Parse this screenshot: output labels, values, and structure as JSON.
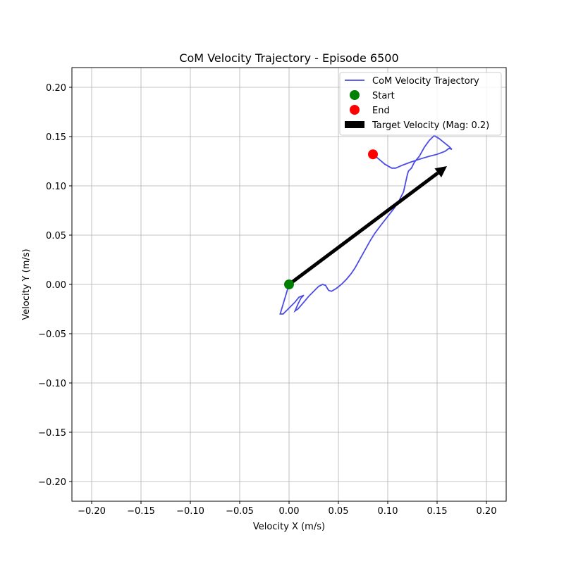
{
  "chart_data": {
    "type": "line",
    "title": "CoM Velocity Trajectory - Episode 6500",
    "xlabel": "Velocity X (m/s)",
    "ylabel": "Velocity Y (m/s)",
    "xlim": [
      -0.22,
      0.22
    ],
    "ylim": [
      -0.22,
      0.22
    ],
    "grid": true,
    "legend_position": "top-right",
    "x_ticks": [
      -0.2,
      -0.15,
      -0.1,
      -0.05,
      0.0,
      0.05,
      0.1,
      0.15,
      0.2
    ],
    "y_ticks": [
      -0.2,
      -0.15,
      -0.1,
      -0.05,
      0.0,
      0.05,
      0.1,
      0.15,
      0.2
    ],
    "x_tick_labels": [
      "−0.20",
      "−0.15",
      "−0.10",
      "−0.05",
      "0.00",
      "0.05",
      "0.10",
      "0.15",
      "0.20"
    ],
    "y_tick_labels": [
      "−0.20",
      "−0.15",
      "−0.10",
      "−0.05",
      "0.00",
      "0.05",
      "0.10",
      "0.15",
      "0.20"
    ],
    "series": [
      {
        "name": "CoM Velocity Trajectory",
        "color": "#4b4be6",
        "points": [
          [
            0.0,
            0.0
          ],
          [
            -0.003,
            -0.01
          ],
          [
            -0.006,
            -0.02
          ],
          [
            -0.009,
            -0.03
          ],
          [
            -0.006,
            -0.03
          ],
          [
            0.0,
            -0.024
          ],
          [
            0.006,
            -0.018
          ],
          [
            0.01,
            -0.013
          ],
          [
            0.015,
            -0.011
          ],
          [
            0.012,
            -0.014
          ],
          [
            0.009,
            -0.02
          ],
          [
            0.006,
            -0.027
          ],
          [
            0.009,
            -0.025
          ],
          [
            0.015,
            -0.018
          ],
          [
            0.02,
            -0.012
          ],
          [
            0.025,
            -0.007
          ],
          [
            0.03,
            -0.002
          ],
          [
            0.034,
            0.0
          ],
          [
            0.037,
            -0.001
          ],
          [
            0.04,
            -0.006
          ],
          [
            0.043,
            -0.007
          ],
          [
            0.048,
            -0.004
          ],
          [
            0.053,
            0.0
          ],
          [
            0.058,
            0.005
          ],
          [
            0.063,
            0.011
          ],
          [
            0.067,
            0.017
          ],
          [
            0.072,
            0.026
          ],
          [
            0.077,
            0.035
          ],
          [
            0.082,
            0.044
          ],
          [
            0.087,
            0.052
          ],
          [
            0.093,
            0.06
          ],
          [
            0.1,
            0.069
          ],
          [
            0.107,
            0.078
          ],
          [
            0.112,
            0.086
          ],
          [
            0.116,
            0.094
          ],
          [
            0.118,
            0.103
          ],
          [
            0.12,
            0.112
          ],
          [
            0.121,
            0.115
          ],
          [
            0.124,
            0.118
          ],
          [
            0.127,
            0.124
          ],
          [
            0.132,
            0.13
          ],
          [
            0.137,
            0.139
          ],
          [
            0.142,
            0.146
          ],
          [
            0.147,
            0.151
          ],
          [
            0.152,
            0.148
          ],
          [
            0.157,
            0.144
          ],
          [
            0.162,
            0.14
          ],
          [
            0.165,
            0.137
          ],
          [
            0.162,
            0.138
          ],
          [
            0.158,
            0.135
          ],
          [
            0.15,
            0.132
          ],
          [
            0.142,
            0.13
          ],
          [
            0.132,
            0.127
          ],
          [
            0.123,
            0.124
          ],
          [
            0.115,
            0.121
          ],
          [
            0.108,
            0.118
          ],
          [
            0.104,
            0.118
          ],
          [
            0.097,
            0.122
          ],
          [
            0.09,
            0.128
          ],
          [
            0.085,
            0.132
          ]
        ]
      }
    ],
    "start": {
      "name": "Start",
      "x": 0.0,
      "y": 0.0,
      "color": "#008000"
    },
    "end": {
      "name": "End",
      "x": 0.085,
      "y": 0.132,
      "color": "#ff0000"
    },
    "target_velocity": {
      "name": "Target Velocity (Mag: 0.2)",
      "x0": 0.0,
      "y0": 0.0,
      "dx": 0.16,
      "dy": 0.12,
      "color": "#000000"
    }
  }
}
